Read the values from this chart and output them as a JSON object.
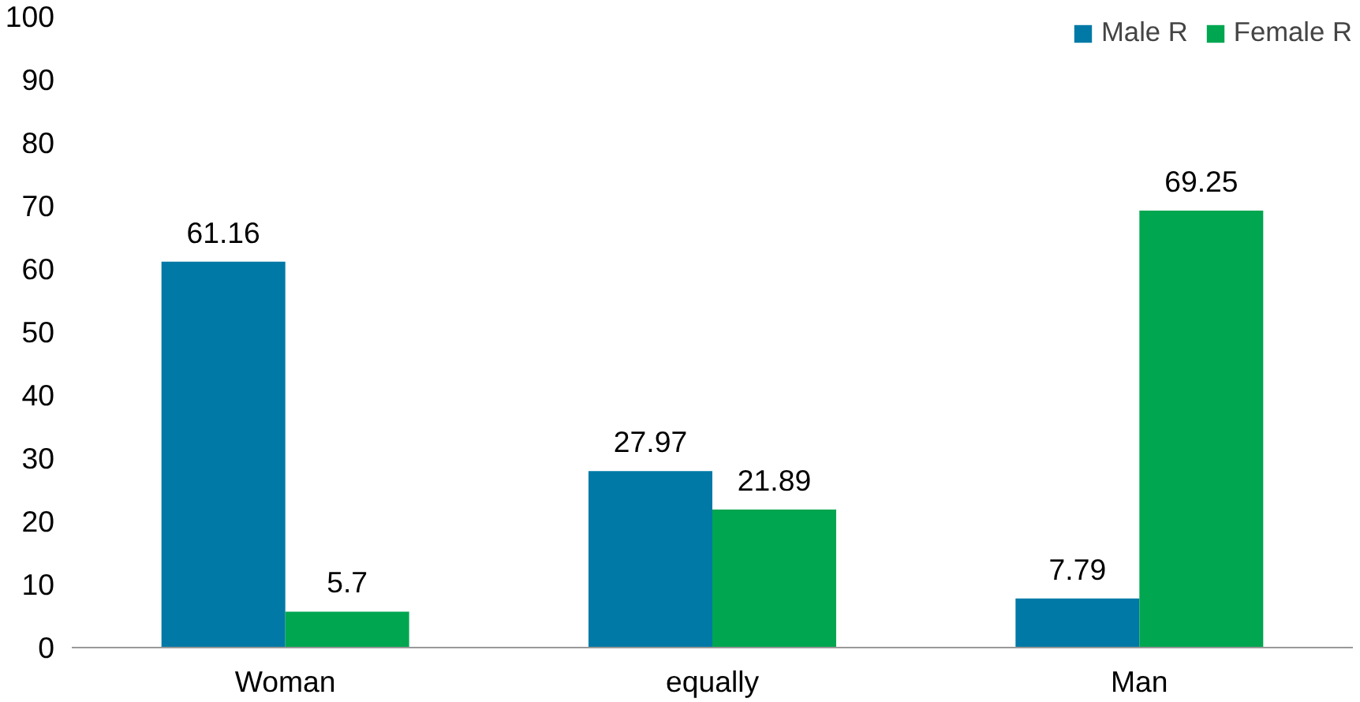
{
  "chart_data": {
    "type": "bar",
    "categories": [
      "Woman",
      "equally",
      "Man"
    ],
    "series": [
      {
        "name": "Male R",
        "color": "#0079a6",
        "values": [
          61.16,
          27.97,
          7.79
        ]
      },
      {
        "name": "Female R",
        "color": "#00a650",
        "values": [
          5.7,
          21.89,
          69.25
        ]
      }
    ],
    "ylim": [
      0,
      100
    ],
    "yticks": [
      0,
      10,
      20,
      30,
      40,
      50,
      60,
      70,
      80,
      90,
      100
    ],
    "grid": false,
    "legend": "top right",
    "data_labels": true
  }
}
